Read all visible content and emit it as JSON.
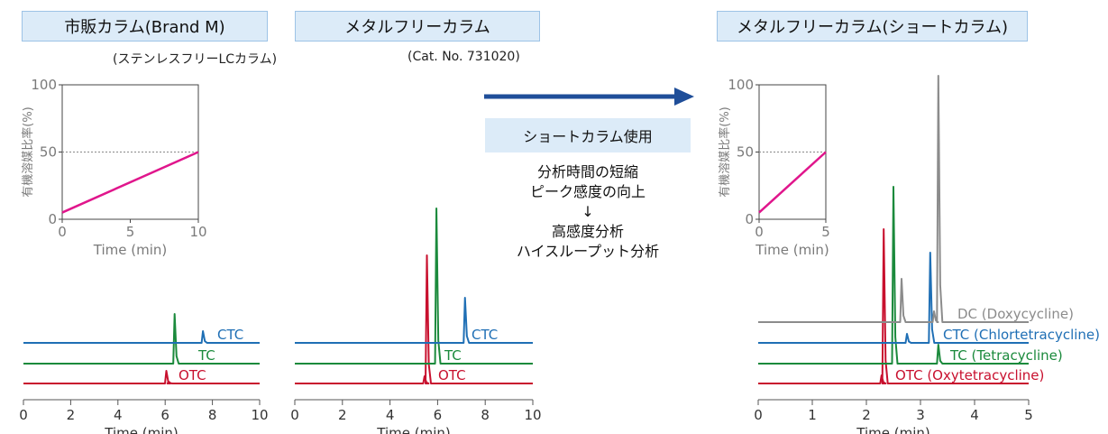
{
  "titles": {
    "left": "市販カラム(Brand M)",
    "middle": "メタルフリーカラム",
    "right": "メタルフリーカラム(ショートカラム)"
  },
  "captions": {
    "left": "(ステンレスフリーLCカラム)",
    "middle": "(Cat. No. 731020)"
  },
  "middle_panel": {
    "badge": "ショートカラム使用",
    "line1": "分析時間の短縮",
    "line2": "ピーク感度の向上",
    "arrow_down": "↓",
    "line3": "高感度分析",
    "line4": "ハイスループット分析"
  },
  "colors": {
    "OTC": "#c8102e",
    "TC": "#1b8a3c",
    "CTC": "#1f6fb5",
    "DC": "#8c8c8c",
    "gradient": "#e0168c",
    "arrow": "#1f4e99"
  },
  "chart_data": [
    {
      "type": "line",
      "title": "有機溶媒比率",
      "xlabel": "Time (min)",
      "ylabel": "有機溶媒比率(%)",
      "xlim": [
        0,
        10
      ],
      "ylim": [
        0,
        100
      ],
      "xticks": [
        0,
        5,
        10
      ],
      "yticks": [
        0,
        50,
        100
      ],
      "dashed_y": 50,
      "series": [
        {
          "x": [
            0,
            10
          ],
          "y": [
            5,
            50
          ]
        }
      ]
    },
    {
      "type": "line",
      "title": "市販カラム(Brand M)",
      "xlabel": "Time (min)",
      "xlim": [
        0,
        10
      ],
      "xticks": [
        0,
        2,
        4,
        6,
        8,
        10
      ],
      "series": [
        {
          "name": "OTC",
          "peaks": [
            [
              6.05,
              14
            ],
            [
              6.15,
              2
            ]
          ]
        },
        {
          "name": "TC",
          "peaks": [
            [
              6.4,
              55
            ]
          ]
        },
        {
          "name": "CTC",
          "peaks": [
            [
              7.6,
              13
            ]
          ]
        }
      ]
    },
    {
      "type": "line",
      "title": "メタルフリーカラム",
      "xlabel": "Time (min)",
      "xlim": [
        0,
        10
      ],
      "xticks": [
        0,
        2,
        4,
        6,
        8,
        10
      ],
      "series": [
        {
          "name": "OTC",
          "peaks": [
            [
              5.45,
              8
            ],
            [
              5.55,
              142
            ]
          ]
        },
        {
          "name": "TC",
          "peaks": [
            [
              5.95,
              172
            ]
          ]
        },
        {
          "name": "CTC",
          "peaks": [
            [
              7.15,
              50
            ]
          ]
        }
      ]
    },
    {
      "type": "line",
      "title": "有機溶媒比率",
      "xlabel": "Time (min)",
      "ylabel": "有機溶媒比率(%)",
      "xlim": [
        0,
        5
      ],
      "ylim": [
        0,
        100
      ],
      "xticks": [
        0,
        5
      ],
      "yticks": [
        0,
        50,
        100
      ],
      "dashed_y": 50,
      "series": [
        {
          "x": [
            0,
            5
          ],
          "y": [
            5,
            50
          ]
        }
      ]
    },
    {
      "type": "line",
      "title": "メタルフリーカラム(ショートカラム)",
      "xlabel": "Time (min)",
      "xlim": [
        0,
        5
      ],
      "xticks": [
        0,
        1,
        2,
        3,
        4,
        5
      ],
      "series": [
        {
          "name": "OTC",
          "label": "OTC (Oxytetracycline)",
          "peaks": [
            [
              2.28,
              9
            ],
            [
              2.32,
              171
            ]
          ]
        },
        {
          "name": "TC",
          "label": "TC (Tetracycline)",
          "peaks": [
            [
              2.5,
              196
            ],
            [
              3.33,
              21
            ]
          ]
        },
        {
          "name": "CTC",
          "label": "CTC (Chlortetracycline)",
          "peaks": [
            [
              2.75,
              10
            ],
            [
              3.18,
              100
            ]
          ]
        },
        {
          "name": "DC",
          "label": "DC (Doxycycline)",
          "peaks": [
            [
              2.65,
              48
            ],
            [
              3.25,
              12
            ],
            [
              3.33,
              273
            ]
          ]
        }
      ]
    }
  ]
}
